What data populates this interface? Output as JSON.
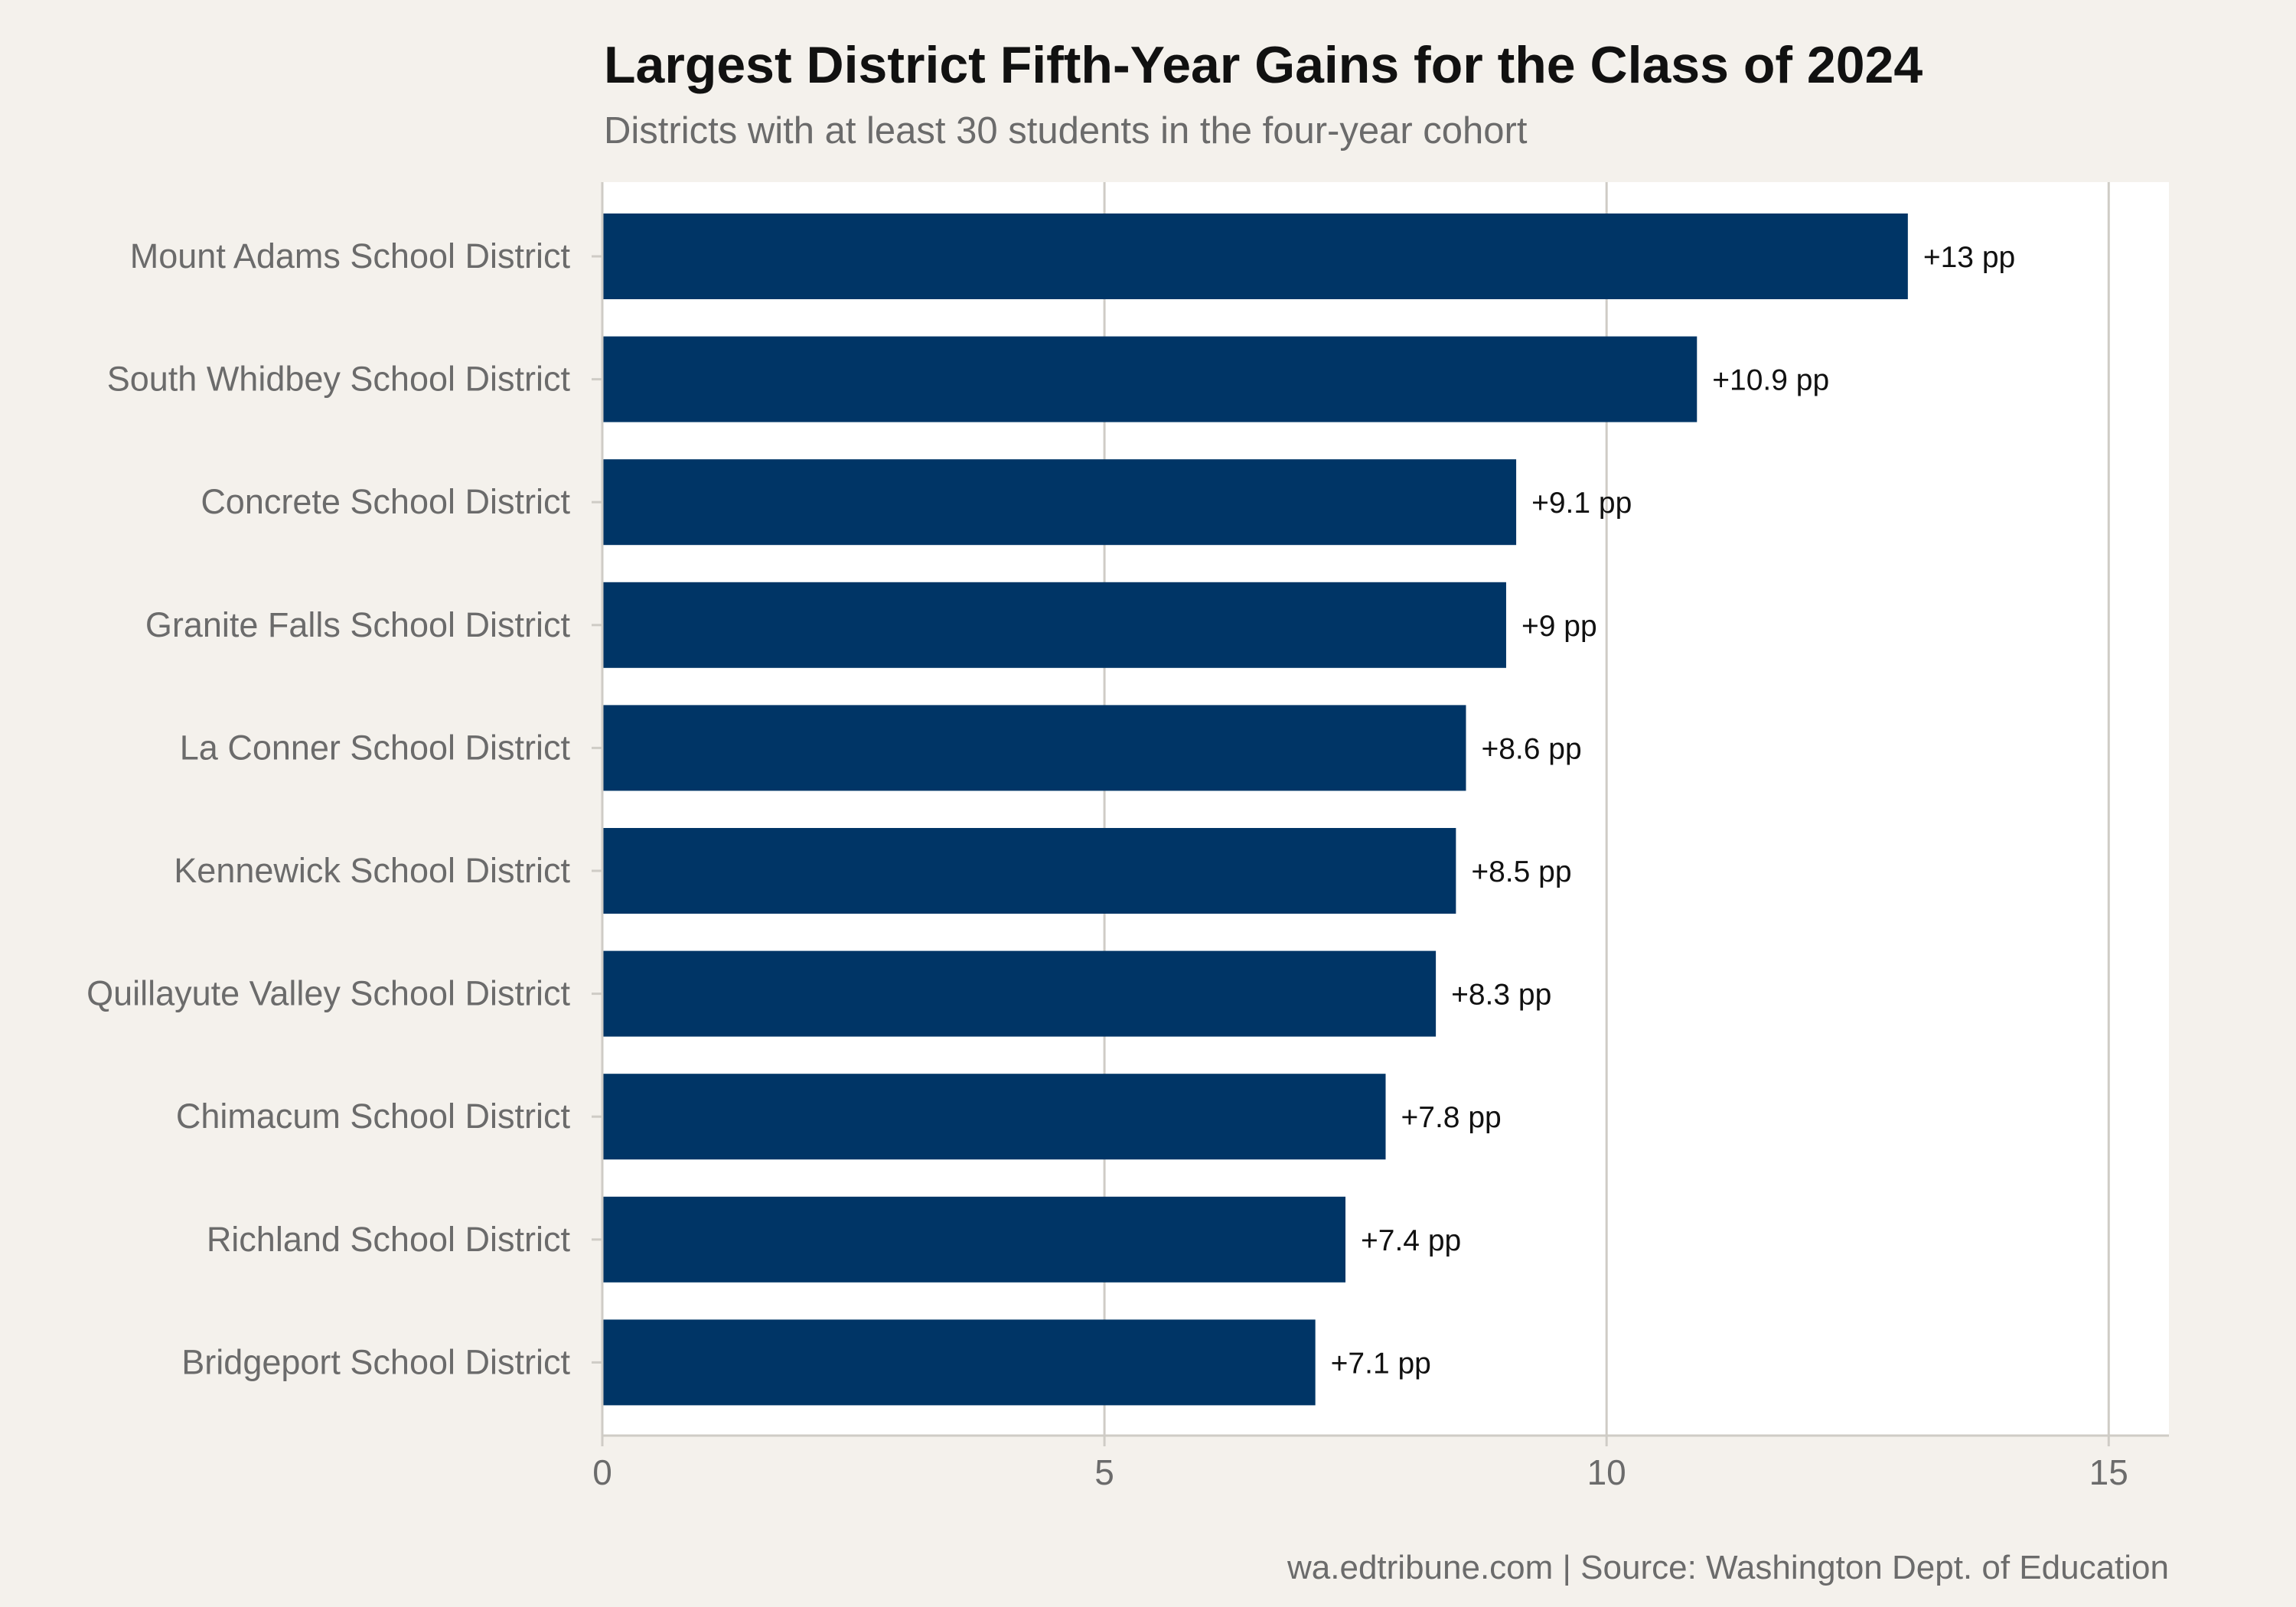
{
  "chart_data": {
    "type": "bar",
    "orientation": "horizontal",
    "title": "Largest District Fifth-Year Gains for the Class of 2024",
    "subtitle": "Districts with at least 30 students in the four-year cohort",
    "caption": "wa.edtribune.com | Source: Washington Dept. of Education",
    "xlabel": "",
    "ylabel": "",
    "xlim": [
      0,
      15.6
    ],
    "xticks": [
      0,
      5,
      10,
      15
    ],
    "grid": "vertical",
    "legend": "none",
    "categories": [
      "Mount Adams School District",
      "South Whidbey School District",
      "Concrete School District",
      "Granite Falls School District",
      "La Conner School District",
      "Kennewick School District",
      "Quillayute Valley School District",
      "Chimacum School District",
      "Richland School District",
      "Bridgeport School District"
    ],
    "values": [
      13,
      10.9,
      9.1,
      9,
      8.6,
      8.5,
      8.3,
      7.8,
      7.4,
      7.1
    ],
    "data_labels": [
      "+13 pp",
      "+10.9 pp",
      "+9.1 pp",
      "+9 pp",
      "+8.6 pp",
      "+8.5 pp",
      "+8.3 pp",
      "+7.8 pp",
      "+7.4 pp",
      "+7.1 pp"
    ],
    "colors": {
      "bar": "#003566",
      "panel": "#ffffff",
      "background": "#f4f1ec",
      "grid": "#cfccc6"
    }
  }
}
